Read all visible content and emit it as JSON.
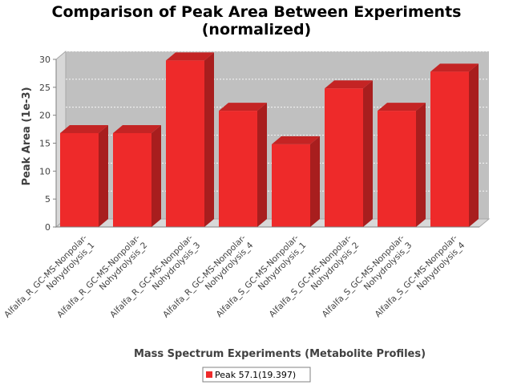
{
  "chart_data": {
    "type": "bar",
    "title": [
      "Comparison of Peak Area Between Experiments",
      "(normalized)"
    ],
    "xlabel": "Mass Spectrum Experiments (Metabolite Profiles)",
    "ylabel": "Peak Area (1e-3)",
    "ylim": [
      0,
      30
    ],
    "yticks": [
      0,
      5,
      10,
      15,
      20,
      25,
      30
    ],
    "grid": true,
    "legend_position": "bottom",
    "categories": [
      [
        "Alfalfa_R_GC-MS-Nonpolar-",
        "Nohydrolysis_1"
      ],
      [
        "Alfalfa_R_GC-MS-Nonpolar-",
        "Nohydrolysis_2"
      ],
      [
        "Alfalfa_R_GC-MS-Nonpolar-",
        "Nohydrolysis_3"
      ],
      [
        "Alfalfa_R_GC-MS-Nonpolar-",
        "Nohydrolysis_4"
      ],
      [
        "Alfalfa_S_GC-MS-Nonpolar-",
        "Nohydrolysis_1"
      ],
      [
        "Alfalfa_S_GC-MS-Nonpolar-",
        "Nohydrolysis_2"
      ],
      [
        "Alfalfa_S_GC-MS-Nonpolar-",
        "Nohydrolysis_3"
      ],
      [
        "Alfalfa_S_GC-MS-Nonpolar-",
        "Nohydrolysis_4"
      ]
    ],
    "series": [
      {
        "name": "Peak 57.1(19.397)",
        "color": "#ee2a2a",
        "values": [
          16.8,
          16.8,
          29.8,
          20.8,
          14.8,
          24.8,
          20.8,
          27.8
        ]
      }
    ]
  }
}
